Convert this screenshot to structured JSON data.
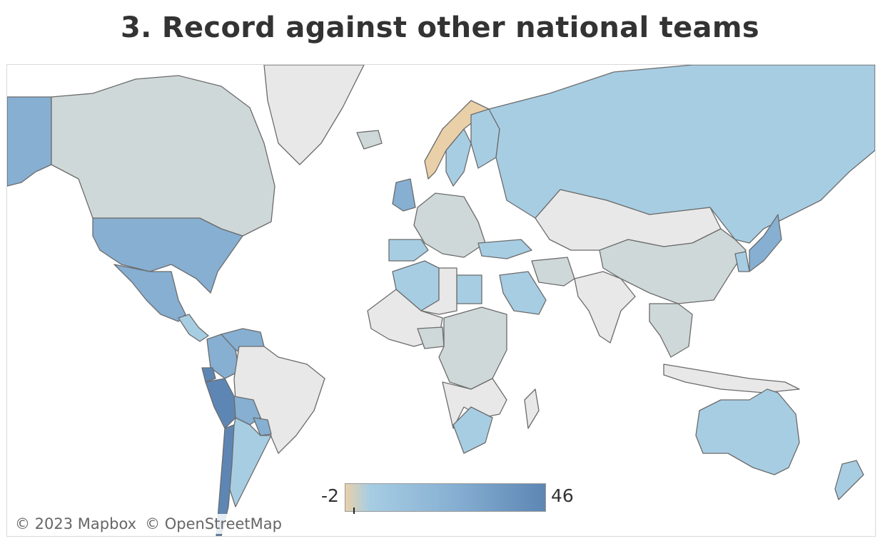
{
  "title": "3. Record against other national teams",
  "attribution": {
    "mapbox": "© 2023 Mapbox",
    "osm": "© OpenStreetMap"
  },
  "legend": {
    "min": "-2",
    "max": "46",
    "min_value": -2,
    "max_value": 46,
    "marker_value": 0
  },
  "colors": {
    "negative": "#e9d0a8",
    "zero": "#cfd8d8",
    "low": "#a7cde3",
    "mid": "#86afd2",
    "high": "#5d86b4",
    "no_data": "#e8e8e8",
    "water": "#ffffff",
    "border": "#6b6b6b"
  },
  "regions": [
    {
      "name": "Alaska",
      "level": "mid"
    },
    {
      "name": "Canada",
      "level": "zero"
    },
    {
      "name": "Greenland",
      "level": "no_data"
    },
    {
      "name": "United States",
      "level": "mid"
    },
    {
      "name": "Mexico",
      "level": "mid"
    },
    {
      "name": "Central America",
      "level": "low"
    },
    {
      "name": "Venezuela",
      "level": "mid"
    },
    {
      "name": "Colombia",
      "level": "mid"
    },
    {
      "name": "Ecuador",
      "level": "high"
    },
    {
      "name": "Peru",
      "level": "high"
    },
    {
      "name": "Brazil",
      "level": "no_data"
    },
    {
      "name": "Bolivia",
      "level": "mid"
    },
    {
      "name": "Paraguay",
      "level": "mid"
    },
    {
      "name": "Argentina",
      "level": "low"
    },
    {
      "name": "Chile",
      "level": "high"
    },
    {
      "name": "Norway",
      "level": "negative"
    },
    {
      "name": "Sweden",
      "level": "low"
    },
    {
      "name": "Finland",
      "level": "low"
    },
    {
      "name": "Iceland",
      "level": "zero"
    },
    {
      "name": "United Kingdom",
      "level": "mid"
    },
    {
      "name": "Western Europe",
      "level": "zero"
    },
    {
      "name": "Spain & Portugal",
      "level": "low"
    },
    {
      "name": "Russia",
      "level": "low"
    },
    {
      "name": "Turkey",
      "level": "low"
    },
    {
      "name": "Algeria",
      "level": "low"
    },
    {
      "name": "Egypt",
      "level": "low"
    },
    {
      "name": "Saudi Arabia",
      "level": "low"
    },
    {
      "name": "North Africa",
      "level": "no_data"
    },
    {
      "name": "West Africa",
      "level": "no_data"
    },
    {
      "name": "Nigeria",
      "level": "zero"
    },
    {
      "name": "Central Africa",
      "level": "zero"
    },
    {
      "name": "Southern Africa",
      "level": "no_data"
    },
    {
      "name": "South Africa",
      "level": "low"
    },
    {
      "name": "Madagascar",
      "level": "no_data"
    },
    {
      "name": "Mongolia & Kazakhstan",
      "level": "no_data"
    },
    {
      "name": "China",
      "level": "zero"
    },
    {
      "name": "India",
      "level": "no_data"
    },
    {
      "name": "Iran",
      "level": "zero"
    },
    {
      "name": "Southeast Asia",
      "level": "zero"
    },
    {
      "name": "Japan",
      "level": "mid"
    },
    {
      "name": "Korea",
      "level": "low"
    },
    {
      "name": "Indonesia",
      "level": "no_data"
    },
    {
      "name": "Australia",
      "level": "low"
    },
    {
      "name": "New Zealand",
      "level": "low"
    }
  ]
}
